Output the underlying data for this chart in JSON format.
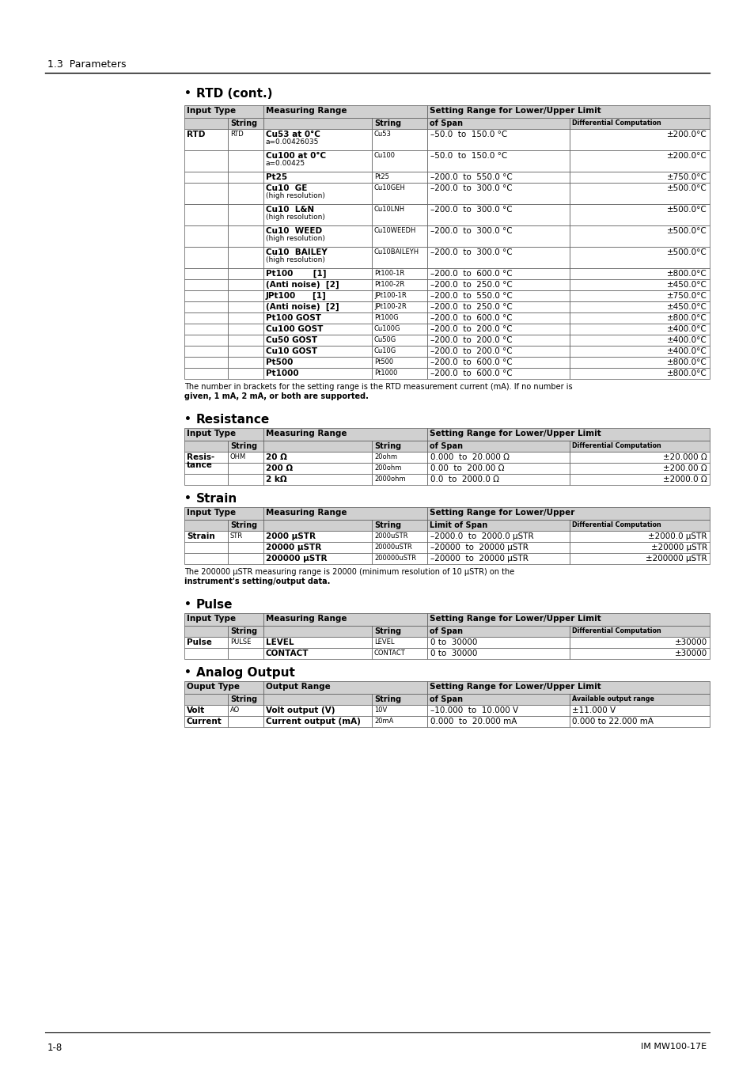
{
  "page_title": "1.3  Parameters",
  "page_number": "1-8",
  "page_number_right": "IM MW100-17E",
  "rtd_section_title": "RTD (cont.)",
  "rtd_note1": "The number in brackets for the setting range is the RTD measurement current (mA). If no number is",
  "rtd_note2": "given, 1 mA, 2 mA, or both are supported.",
  "resistance_title": "Resistance",
  "strain_title": "Strain",
  "pulse_title": "Pulse",
  "analog_title": "Analog Output",
  "col_header1": "Input Type",
  "col_header2": "Measuring Range",
  "col_header3": "Setting Range for Lower/Upper Limit",
  "col_header3_strain": "Setting Range for Lower/Upper",
  "col_h2_1": "String",
  "col_h2_2": "String",
  "col_h2_3": "of Span",
  "col_h2_4": "Differential Computation",
  "col_h2_strain3": "Limit of Span",
  "rtd_rows": [
    [
      "RTD",
      "RTD",
      "Cu53 at 0°C",
      "a=0.00426035",
      "Cu53",
      "–50.0  to  150.0 °C",
      "±200.0°C"
    ],
    [
      "",
      "",
      "Cu100 at 0°C",
      "a=0.00425",
      "Cu100",
      "–50.0  to  150.0 °C",
      "±200.0°C"
    ],
    [
      "",
      "",
      "Pt25",
      "",
      "Pt25",
      "–200.0  to  550.0 °C",
      "±750.0°C"
    ],
    [
      "",
      "",
      "Cu10  GE",
      "(high resolution)",
      "Cu10GEH",
      "–200.0  to  300.0 °C",
      "±500.0°C"
    ],
    [
      "",
      "",
      "Cu10  L&N",
      "(high resolution)",
      "Cu10LNH",
      "–200.0  to  300.0 °C",
      "±500.0°C"
    ],
    [
      "",
      "",
      "Cu10  WEED",
      "(high resolution)",
      "Cu10WEEDH",
      "–200.0  to  300.0 °C",
      "±500.0°C"
    ],
    [
      "",
      "",
      "Cu10  BAILEY",
      "(high resolution)",
      "Cu10BAILEYH",
      "–200.0  to  300.0 °C",
      "±500.0°C"
    ],
    [
      "",
      "",
      "Pt100       [1]",
      "",
      "Pt100-1R",
      "–200.0  to  600.0 °C",
      "±800.0°C"
    ],
    [
      "",
      "",
      "(Anti noise)  [2]",
      "",
      "Pt100-2R",
      "–200.0  to  250.0 °C",
      "±450.0°C"
    ],
    [
      "",
      "",
      "JPt100      [1]",
      "",
      "JPt100-1R",
      "–200.0  to  550.0 °C",
      "±750.0°C"
    ],
    [
      "",
      "",
      "(Anti noise)  [2]",
      "",
      "JPt100-2R",
      "–200.0  to  250.0 °C",
      "±450.0°C"
    ],
    [
      "",
      "",
      "Pt100 GOST",
      "",
      "Pt100G",
      "–200.0  to  600.0 °C",
      "±800.0°C"
    ],
    [
      "",
      "",
      "Cu100 GOST",
      "",
      "Cu100G",
      "–200.0  to  200.0 °C",
      "±400.0°C"
    ],
    [
      "",
      "",
      "Cu50 GOST",
      "",
      "Cu50G",
      "–200.0  to  200.0 °C",
      "±400.0°C"
    ],
    [
      "",
      "",
      "Cu10 GOST",
      "",
      "Cu10G",
      "–200.0  to  200.0 °C",
      "±400.0°C"
    ],
    [
      "",
      "",
      "Pt500",
      "",
      "Pt500",
      "–200.0  to  600.0 °C",
      "±800.0°C"
    ],
    [
      "",
      "",
      "Pt1000",
      "",
      "Pt1000",
      "–200.0  to  600.0 °C",
      "±800.0°C"
    ]
  ],
  "res_rows": [
    [
      "Resis-",
      "tance",
      "OHM",
      "20 Ω",
      "20ohm",
      "0.000  to  20.000 Ω",
      "±20.000 Ω"
    ],
    [
      "",
      "",
      "",
      "200 Ω",
      "200ohm",
      "0.00  to  200.00 Ω",
      "±200.00 Ω"
    ],
    [
      "",
      "",
      "",
      "2 kΩ",
      "2000ohm",
      "0.0  to  2000.0 Ω",
      "±2000.0 Ω"
    ]
  ],
  "strain_rows": [
    [
      "Strain",
      "STR",
      "2000 μSTR",
      "2000uSTR",
      "–2000.0  to  2000.0 μSTR",
      "±2000.0 μSTR"
    ],
    [
      "",
      "",
      "20000 μSTR",
      "20000uSTR",
      "–20000  to  20000 μSTR",
      "±20000 μSTR"
    ],
    [
      "",
      "",
      "200000 μSTR",
      "200000uSTR",
      "–20000  to  20000 μSTR",
      "±200000 μSTR"
    ]
  ],
  "strain_note1": "The 200000 μSTR measuring range is 20000 (minimum resolution of 10 μSTR) on the",
  "strain_note2": "instrument's setting/output data.",
  "pulse_rows": [
    [
      "Pulse",
      "PULSE",
      "LEVEL",
      "LEVEL",
      "0 to  30000",
      "±30000"
    ],
    [
      "",
      "",
      "CONTACT",
      "CONTACT",
      "0 to  30000",
      "±30000"
    ]
  ],
  "analog_col_header1": "Ouput Type",
  "analog_col_header2": "Output Range",
  "analog_col_header3": "Setting Range for Lower/Upper Limit",
  "analog_col_h2_3": "of Span",
  "analog_col_h2_4": "Available output range",
  "analog_rows": [
    [
      "Volt",
      "AO",
      "Volt output (V)",
      "10V",
      "–10.000  to  10.000 V",
      "±11.000 V"
    ],
    [
      "Current",
      "",
      "Current output (mA)",
      "20mA",
      "0.000  to  20.000 mA",
      "0.000 to 22.000 mA"
    ]
  ]
}
